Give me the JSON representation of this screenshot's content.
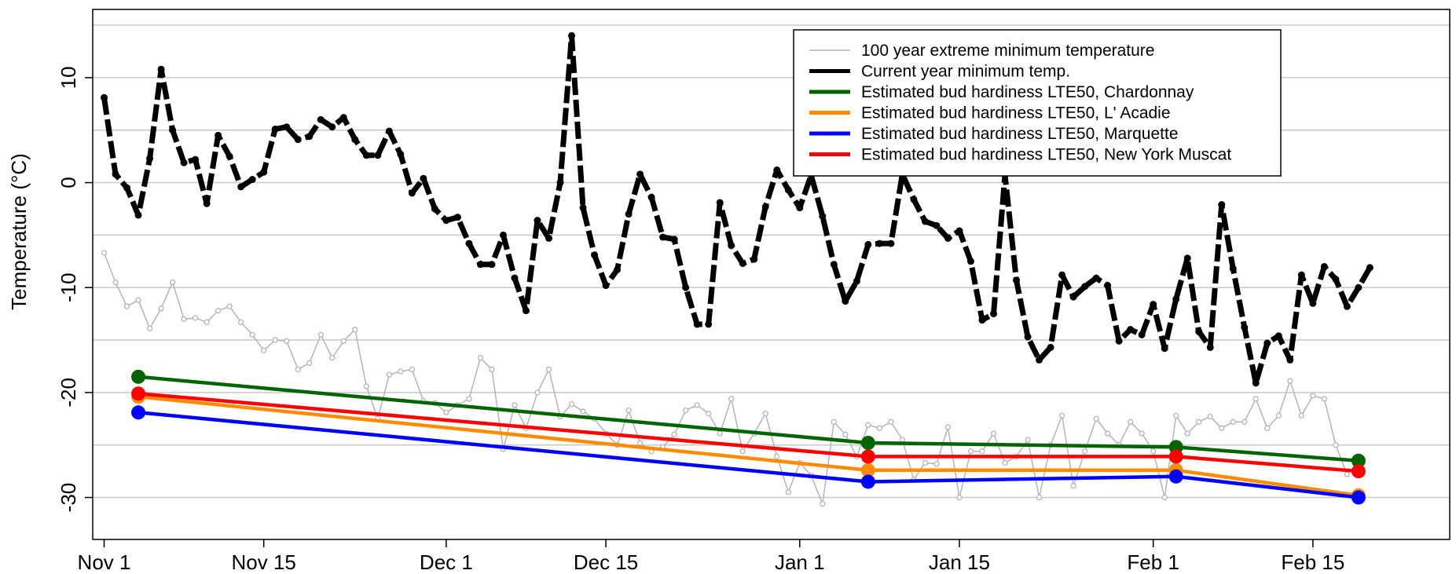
{
  "chart_data": {
    "type": "line",
    "title": "",
    "xlabel": "",
    "ylabel": "Temperature (°C)",
    "xlim": [
      "2020-10-31",
      "2021-02-27"
    ],
    "ylim": [
      -34,
      16.5
    ],
    "grid": "horizontal",
    "legend_position": "top-right",
    "x_ticks": [
      {
        "date": "2020-11-01",
        "label": "Nov 1"
      },
      {
        "date": "2020-11-15",
        "label": "Nov 15"
      },
      {
        "date": "2020-12-01",
        "label": "Dec 1"
      },
      {
        "date": "2020-12-15",
        "label": "Dec 15"
      },
      {
        "date": "2021-01-01",
        "label": "Jan 1"
      },
      {
        "date": "2021-01-15",
        "label": "Jan 15"
      },
      {
        "date": "2021-02-01",
        "label": "Feb 1"
      },
      {
        "date": "2021-02-15",
        "label": "Feb 15"
      }
    ],
    "y_ticks": [
      10,
      0,
      -10,
      -20,
      -30
    ],
    "y_grid": [
      15,
      10,
      5,
      0,
      -5,
      -10,
      -15,
      -20,
      -25,
      -30
    ],
    "x_start": "2020-11-01",
    "series": [
      {
        "name": "100 year extreme minimum temperature",
        "color": "#b4b4b4",
        "style": "thin-line-open-circles",
        "y": [
          -6.7,
          -9.5,
          -11.8,
          -11.2,
          -13.9,
          -12.0,
          -9.5,
          -13.0,
          -12.9,
          -13.3,
          -12.2,
          -11.8,
          -13.3,
          -14.5,
          -16.0,
          -15.0,
          -15.1,
          -17.8,
          -17.2,
          -14.5,
          -16.7,
          -15.1,
          -14.0,
          -19.4,
          -22.5,
          -18.3,
          -18.0,
          -17.8,
          -20.8,
          -21.0,
          -21.9,
          -21.2,
          -20.6,
          -16.7,
          -17.8,
          -25.4,
          -21.2,
          -23.4,
          -20.0,
          -17.8,
          -22.3,
          -21.1,
          -21.8,
          -22.5,
          -23.9,
          -25.0,
          -21.7,
          -24.8,
          -25.6,
          -25.2,
          -24.0,
          -21.7,
          -21.2,
          -22.0,
          -23.9,
          -20.6,
          -25.6,
          -23.9,
          -22.0,
          -26.1,
          -29.5,
          -26.7,
          -27.9,
          -30.6,
          -22.8,
          -24.0,
          -26.1,
          -23.1,
          -23.4,
          -22.8,
          -24.5,
          -28.3,
          -26.7,
          -26.8,
          -23.3,
          -30.0,
          -25.6,
          -25.6,
          -23.9,
          -26.7,
          -26.1,
          -24.5,
          -30.0,
          -25.0,
          -22.2,
          -28.9,
          -25.6,
          -22.5,
          -23.9,
          -25.0,
          -22.8,
          -23.9,
          -25.6,
          -30.0,
          -22.2,
          -23.9,
          -22.8,
          -22.3,
          -23.4,
          -22.8,
          -22.8,
          -20.6,
          -23.4,
          -22.2,
          -18.9,
          -22.2,
          -20.3,
          -20.6,
          -25.0,
          -27.8
        ]
      },
      {
        "name": "Current year minimum temp.",
        "color": "#000000",
        "style": "thick-dashed-points",
        "y": [
          8.1,
          0.8,
          -0.5,
          -3.1,
          2.3,
          10.8,
          5.0,
          1.9,
          2.2,
          -2.0,
          4.5,
          2.5,
          -0.4,
          0.3,
          1.0,
          5.1,
          5.3,
          4.1,
          4.4,
          6.0,
          5.3,
          6.2,
          4.1,
          2.6,
          2.6,
          4.9,
          2.7,
          -1.0,
          0.4,
          -2.5,
          -3.6,
          -3.3,
          -5.8,
          -7.8,
          -7.8,
          -5.0,
          -9.1,
          -12.2,
          -3.6,
          -5.3,
          0.0,
          14.0,
          -2.4,
          -6.9,
          -9.8,
          -8.3,
          -3.0,
          0.8,
          -1.4,
          -5.2,
          -5.4,
          -10.0,
          -13.5,
          -13.5,
          -1.9,
          -6.0,
          -7.7,
          -7.3,
          -2.3,
          1.2,
          -0.7,
          -2.4,
          0.7,
          -3.2,
          -7.8,
          -11.3,
          -9.4,
          -5.9,
          -5.8,
          -5.8,
          0.8,
          -1.6,
          -3.7,
          -4.1,
          -5.3,
          -4.6,
          -7.5,
          -13.1,
          -12.5,
          0.7,
          -9.3,
          -14.7,
          -16.9,
          -15.7,
          -8.8,
          -10.9,
          -9.9,
          -9.1,
          -9.8,
          -15.1,
          -14.0,
          -14.5,
          -11.6,
          -15.8,
          -11.1,
          -7.2,
          -14.2,
          -15.7,
          -2.1,
          -8.2,
          -13.8,
          -19.1,
          -15.3,
          -14.6,
          -16.9,
          -8.8,
          -11.5,
          -8.0,
          -9.2,
          -11.8,
          -10.0,
          -8.1
        ]
      },
      {
        "name": "Estimated bud hardiness LTE50, Chardonnay",
        "color": "#006400",
        "style": "thick-line-dots",
        "points": [
          [
            "2020-11-04",
            -18.5
          ],
          [
            "2021-01-07",
            -24.8
          ],
          [
            "2021-02-03",
            -25.2
          ],
          [
            "2021-02-19",
            -26.5
          ]
        ]
      },
      {
        "name": "Estimated bud hardiness LTE50, L' Acadie",
        "color": "#ff8c00",
        "style": "thick-line-dots",
        "points": [
          [
            "2020-11-04",
            -20.4
          ],
          [
            "2021-01-07",
            -27.4
          ],
          [
            "2021-02-03",
            -27.4
          ],
          [
            "2021-02-19",
            -29.8
          ]
        ]
      },
      {
        "name": "Estimated bud hardiness LTE50, Marquette",
        "color": "#0000ff",
        "style": "thick-line-dots",
        "points": [
          [
            "2020-11-04",
            -21.9
          ],
          [
            "2021-01-07",
            -28.5
          ],
          [
            "2021-02-03",
            -28.0
          ],
          [
            "2021-02-19",
            -30.0
          ]
        ]
      },
      {
        "name": "Estimated bud hardiness LTE50, New York Muscat",
        "color": "#ff0000",
        "style": "thick-line-dots",
        "points": [
          [
            "2020-11-04",
            -20.1
          ],
          [
            "2021-01-07",
            -26.1
          ],
          [
            "2021-02-03",
            -26.1
          ],
          [
            "2021-02-19",
            -27.5
          ]
        ]
      }
    ]
  }
}
